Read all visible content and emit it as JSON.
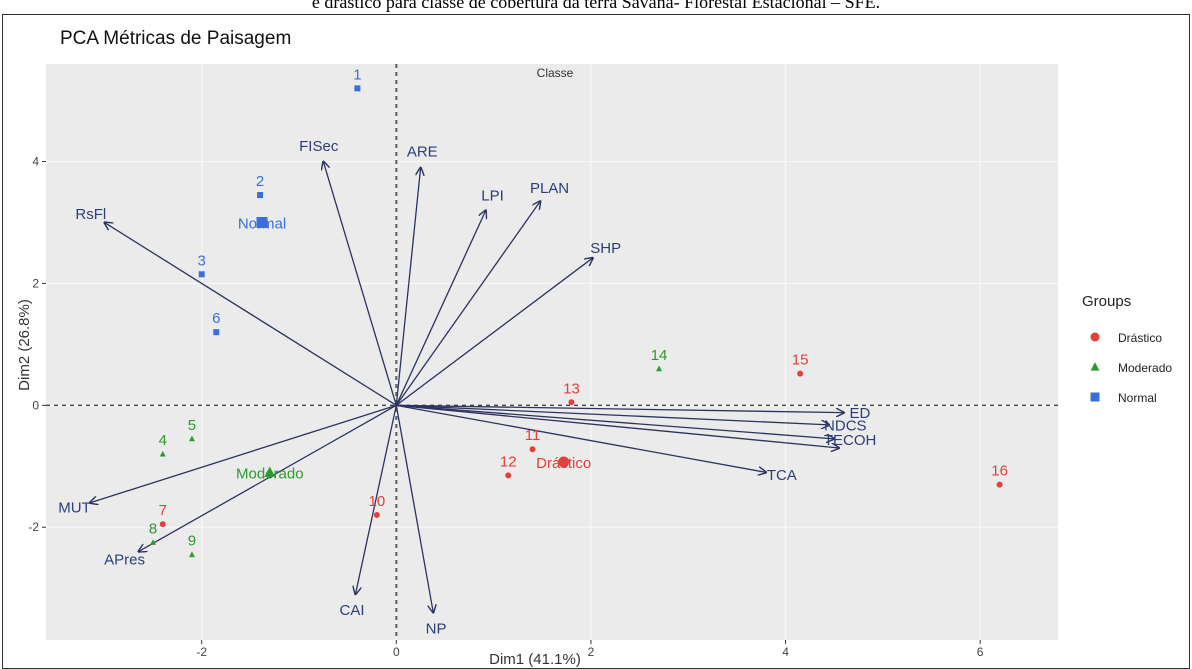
{
  "caption": "e drástico para classe de cobertura da terra Savana- Florestal Estacional – SFE.",
  "chart_data": {
    "type": "scatter",
    "title": "PCA Métricas de Paisagem",
    "subtitle": "Classe",
    "xlabel": "Dim1 (41.1%)",
    "ylabel": "Dim2 (26.8%)",
    "xlim": [
      -3.6,
      6.8
    ],
    "ylim": [
      -3.85,
      5.6
    ],
    "xticks": [
      -2,
      0,
      2,
      4,
      6
    ],
    "yticks": [
      -2,
      0,
      2,
      4
    ],
    "legend": {
      "title": "Groups",
      "position": "right",
      "entries": [
        {
          "name": "Drástico",
          "color": "#e3403a",
          "shape": "circle"
        },
        {
          "name": "Moderado",
          "color": "#2e9a2e",
          "shape": "triangle"
        },
        {
          "name": "Normal",
          "color": "#3a6fd8",
          "shape": "square"
        }
      ]
    },
    "series": [
      {
        "name": "Drástico",
        "color": "#e3403a",
        "shape": "circle",
        "points": [
          {
            "label": "7",
            "x": -2.4,
            "y": -1.95
          },
          {
            "label": "10",
            "x": -0.2,
            "y": -1.8
          },
          {
            "label": "11",
            "x": 1.4,
            "y": -0.72
          },
          {
            "label": "12",
            "x": 1.15,
            "y": -1.15
          },
          {
            "label": "13",
            "x": 1.8,
            "y": 0.05
          },
          {
            "label": "15",
            "x": 4.15,
            "y": 0.52
          },
          {
            "label": "16",
            "x": 6.2,
            "y": -1.3
          }
        ],
        "centroid": {
          "label": "Drástico",
          "x": 1.72,
          "y": -0.93
        }
      },
      {
        "name": "Moderado",
        "color": "#2e9a2e",
        "shape": "triangle",
        "points": [
          {
            "label": "4",
            "x": -2.4,
            "y": -0.8
          },
          {
            "label": "5",
            "x": -2.1,
            "y": -0.55
          },
          {
            "label": "8",
            "x": -2.5,
            "y": -2.25
          },
          {
            "label": "9",
            "x": -2.1,
            "y": -2.45
          },
          {
            "label": "14",
            "x": 2.7,
            "y": 0.6
          }
        ],
        "centroid": {
          "label": "Moderado",
          "x": -1.3,
          "y": -1.1
        }
      },
      {
        "name": "Normal",
        "color": "#3a6fd8",
        "shape": "square",
        "points": [
          {
            "label": "1",
            "x": -0.4,
            "y": 5.2
          },
          {
            "label": "2",
            "x": -1.4,
            "y": 3.45
          },
          {
            "label": "3",
            "x": -2.0,
            "y": 2.15
          },
          {
            "label": "6",
            "x": -1.85,
            "y": 1.2
          }
        ],
        "centroid": {
          "label": "Normal",
          "x": -1.38,
          "y": 3.0
        }
      }
    ],
    "variables": [
      {
        "name": "FISec",
        "x": -0.75,
        "y": 4.0
      },
      {
        "name": "ARE",
        "x": 0.25,
        "y": 3.9
      },
      {
        "name": "LPI",
        "x": 0.92,
        "y": 3.2
      },
      {
        "name": "PLAN",
        "x": 1.48,
        "y": 3.35
      },
      {
        "name": "SHP",
        "x": 2.02,
        "y": 2.42
      },
      {
        "name": "RsFl",
        "x": -3.0,
        "y": 3.0
      },
      {
        "name": "MUT",
        "x": -3.15,
        "y": -1.6
      },
      {
        "name": "APres",
        "x": -2.65,
        "y": -2.4
      },
      {
        "name": "CAI",
        "x": -0.42,
        "y": -3.1
      },
      {
        "name": "NP",
        "x": 0.38,
        "y": -3.4
      },
      {
        "name": "TCA",
        "x": 3.8,
        "y": -1.1
      },
      {
        "name": "ED",
        "x": 4.6,
        "y": -0.12
      },
      {
        "name": "NDCS",
        "x": 4.45,
        "y": -0.32
      },
      {
        "name": "TECOH",
        "x": 4.5,
        "y": -0.55
      },
      {
        "name": "",
        "x": 4.55,
        "y": -0.7
      }
    ]
  }
}
